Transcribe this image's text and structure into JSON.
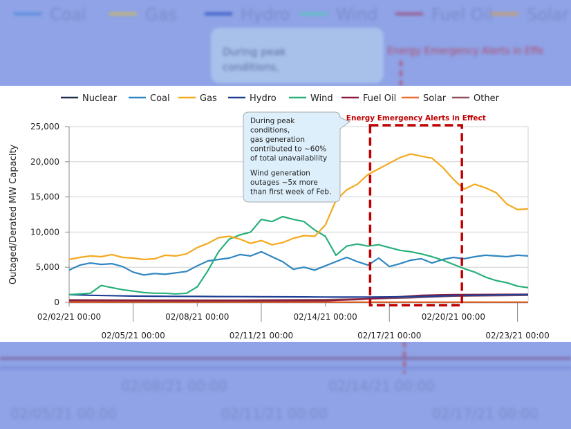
{
  "chart_data": {
    "type": "line",
    "ylabel": "Outaged/Derated MW Capacity",
    "ylim": [
      0,
      25000
    ],
    "yticks": [
      0,
      5000,
      10000,
      15000,
      20000,
      25000
    ],
    "ytick_labels": [
      "0",
      "5,000",
      "10,000",
      "15,000",
      "20,000",
      "25,000"
    ],
    "xlim": [
      "02/02/21 00:00",
      "02/23/21 00:00"
    ],
    "xticks": [
      {
        "t": 0,
        "label": "02/02/21 00:00"
      },
      {
        "t": 3,
        "label": "02/05/21 00:00"
      },
      {
        "t": 6,
        "label": "02/08/21 00:00"
      },
      {
        "t": 9,
        "label": "02/11/21 00:00"
      },
      {
        "t": 12,
        "label": "02/14/21 00:00"
      },
      {
        "t": 15,
        "label": "02/17/21 00:00"
      },
      {
        "t": 18,
        "label": "02/20/21 00:00"
      },
      {
        "t": 21,
        "label": "02/23/21 00:00"
      }
    ],
    "grid": "horizontal",
    "legend_position": "top",
    "series": [
      {
        "name": "Nuclear",
        "color": "#1f2d4d",
        "points": [
          [
            0,
            0
          ],
          [
            21.5,
            0
          ]
        ]
      },
      {
        "name": "Coal",
        "color": "#2e86c1",
        "points": [
          [
            0,
            4600
          ],
          [
            0.5,
            5300
          ],
          [
            1,
            5600
          ],
          [
            1.5,
            5400
          ],
          [
            2,
            5500
          ],
          [
            2.5,
            5100
          ],
          [
            3,
            4300
          ],
          [
            3.5,
            3900
          ],
          [
            4,
            4100
          ],
          [
            4.5,
            4000
          ],
          [
            5,
            4200
          ],
          [
            5.5,
            4400
          ],
          [
            6,
            5200
          ],
          [
            6.5,
            5900
          ],
          [
            7,
            6100
          ],
          [
            7.5,
            6300
          ],
          [
            8,
            6800
          ],
          [
            8.5,
            6600
          ],
          [
            9,
            7200
          ],
          [
            9.5,
            6500
          ],
          [
            10,
            5800
          ],
          [
            10.5,
            4700
          ],
          [
            11,
            5000
          ],
          [
            11.5,
            4600
          ],
          [
            12,
            5200
          ],
          [
            12.5,
            5800
          ],
          [
            13,
            6400
          ],
          [
            13.5,
            5800
          ],
          [
            14,
            5300
          ],
          [
            14.5,
            6300
          ],
          [
            15,
            5100
          ],
          [
            15.5,
            5500
          ],
          [
            16,
            6000
          ],
          [
            16.5,
            6200
          ],
          [
            17,
            5600
          ],
          [
            17.5,
            6100
          ],
          [
            18,
            6400
          ],
          [
            18.5,
            6200
          ],
          [
            19,
            6500
          ],
          [
            19.5,
            6700
          ],
          [
            20,
            6600
          ],
          [
            20.5,
            6500
          ],
          [
            21,
            6700
          ],
          [
            21.5,
            6600
          ]
        ]
      },
      {
        "name": "Gas",
        "color": "#f4a81d",
        "points": [
          [
            0,
            6100
          ],
          [
            0.5,
            6400
          ],
          [
            1,
            6600
          ],
          [
            1.5,
            6500
          ],
          [
            2,
            6800
          ],
          [
            2.5,
            6400
          ],
          [
            3,
            6300
          ],
          [
            3.5,
            6100
          ],
          [
            4,
            6200
          ],
          [
            4.5,
            6700
          ],
          [
            5,
            6600
          ],
          [
            5.5,
            6900
          ],
          [
            6,
            7800
          ],
          [
            6.5,
            8400
          ],
          [
            7,
            9200
          ],
          [
            7.5,
            9400
          ],
          [
            8,
            9000
          ],
          [
            8.5,
            8400
          ],
          [
            9,
            8800
          ],
          [
            9.5,
            8200
          ],
          [
            10,
            8500
          ],
          [
            10.5,
            9100
          ],
          [
            11,
            9500
          ],
          [
            11.5,
            9400
          ],
          [
            12,
            11000
          ],
          [
            12.5,
            14500
          ],
          [
            13,
            16000
          ],
          [
            13.5,
            16800
          ],
          [
            14,
            18200
          ],
          [
            14.5,
            19000
          ],
          [
            15,
            19800
          ],
          [
            15.5,
            20600
          ],
          [
            16,
            21100
          ],
          [
            16.5,
            20800
          ],
          [
            17,
            20500
          ],
          [
            17.5,
            19200
          ],
          [
            18,
            17500
          ],
          [
            18.5,
            16100
          ],
          [
            19,
            16800
          ],
          [
            19.5,
            16300
          ],
          [
            20,
            15600
          ],
          [
            20.5,
            14000
          ],
          [
            21,
            13200
          ],
          [
            21.5,
            13300
          ]
        ]
      },
      {
        "name": "Hydro",
        "color": "#1f3f96",
        "points": [
          [
            0,
            1100
          ],
          [
            1,
            1000
          ],
          [
            2,
            950
          ],
          [
            3,
            900
          ],
          [
            4,
            880
          ],
          [
            5,
            860
          ],
          [
            6,
            850
          ],
          [
            7,
            830
          ],
          [
            8,
            820
          ],
          [
            9,
            800
          ],
          [
            10,
            790
          ],
          [
            11,
            780
          ],
          [
            12,
            760
          ],
          [
            13,
            750
          ],
          [
            14,
            760
          ],
          [
            15,
            780
          ],
          [
            16,
            820
          ],
          [
            17,
            880
          ],
          [
            18,
            950
          ],
          [
            19,
            1000
          ],
          [
            20,
            1050
          ],
          [
            21,
            1100
          ],
          [
            21.5,
            1120
          ]
        ]
      },
      {
        "name": "Wind",
        "color": "#27b07a",
        "points": [
          [
            0,
            1100
          ],
          [
            0.5,
            1200
          ],
          [
            1,
            1300
          ],
          [
            1.5,
            2400
          ],
          [
            2,
            2100
          ],
          [
            2.5,
            1800
          ],
          [
            3,
            1600
          ],
          [
            3.5,
            1400
          ],
          [
            4,
            1300
          ],
          [
            4.5,
            1300
          ],
          [
            5,
            1200
          ],
          [
            5.5,
            1300
          ],
          [
            6,
            2200
          ],
          [
            6.5,
            4500
          ],
          [
            7,
            7200
          ],
          [
            7.5,
            9000
          ],
          [
            8,
            9600
          ],
          [
            8.5,
            10000
          ],
          [
            9,
            11800
          ],
          [
            9.5,
            11500
          ],
          [
            10,
            12200
          ],
          [
            10.5,
            11800
          ],
          [
            11,
            11500
          ],
          [
            11.5,
            10300
          ],
          [
            12,
            9400
          ],
          [
            12.5,
            6700
          ],
          [
            13,
            8000
          ],
          [
            13.5,
            8300
          ],
          [
            14,
            8000
          ],
          [
            14.5,
            8200
          ],
          [
            15,
            7800
          ],
          [
            15.5,
            7400
          ],
          [
            16,
            7200
          ],
          [
            16.5,
            6900
          ],
          [
            17,
            6500
          ],
          [
            17.5,
            6000
          ],
          [
            18,
            5400
          ],
          [
            18.5,
            4800
          ],
          [
            19,
            4300
          ],
          [
            19.5,
            3600
          ],
          [
            20,
            3100
          ],
          [
            20.5,
            2800
          ],
          [
            21,
            2300
          ],
          [
            21.5,
            2100
          ]
        ]
      },
      {
        "name": "Fuel Oil",
        "color": "#8b1a3c",
        "points": [
          [
            0,
            250
          ],
          [
            3,
            230
          ],
          [
            6,
            220
          ],
          [
            9,
            220
          ],
          [
            12,
            240
          ],
          [
            13.5,
            400
          ],
          [
            15,
            700
          ],
          [
            16.5,
            1000
          ],
          [
            18,
            1100
          ],
          [
            21.5,
            1150
          ]
        ]
      },
      {
        "name": "Solar",
        "color": "#ef6c2b",
        "points": [
          [
            0,
            40
          ],
          [
            21.5,
            40
          ]
        ]
      },
      {
        "name": "Other",
        "color": "#8e4f5c",
        "points": [
          [
            0,
            350
          ],
          [
            4,
            320
          ],
          [
            8,
            320
          ],
          [
            12,
            380
          ],
          [
            14,
            500
          ],
          [
            16,
            650
          ],
          [
            18,
            900
          ],
          [
            21.5,
            1000
          ]
        ]
      }
    ],
    "annotations": {
      "callout": [
        "During peak",
        "conditions,",
        "gas generation",
        "contributed to ~60%",
        "of total unavailability",
        "Wind generation",
        "outages ~5x more",
        "than first week of Feb."
      ],
      "alert_label": "Energy Emergency Alerts in Effect",
      "alert_range": [
        14,
        18.3
      ],
      "alert_color": "#c00000"
    }
  },
  "background": {
    "legend": [
      "Coal",
      "Gas",
      "Hydro",
      "Wind",
      "Fuel Oil",
      "Solar"
    ],
    "callout_lines": [
      "During peak",
      "conditions,"
    ],
    "alert_label": "Energy Emergency Alerts in Effe",
    "xticks_row1": [
      "02/08/21 00:00",
      "02/14/21 00:00"
    ],
    "xticks_row2": [
      "02/05/21 00:00",
      "02/11/21 00:00",
      "02/17/21 00:00"
    ]
  }
}
